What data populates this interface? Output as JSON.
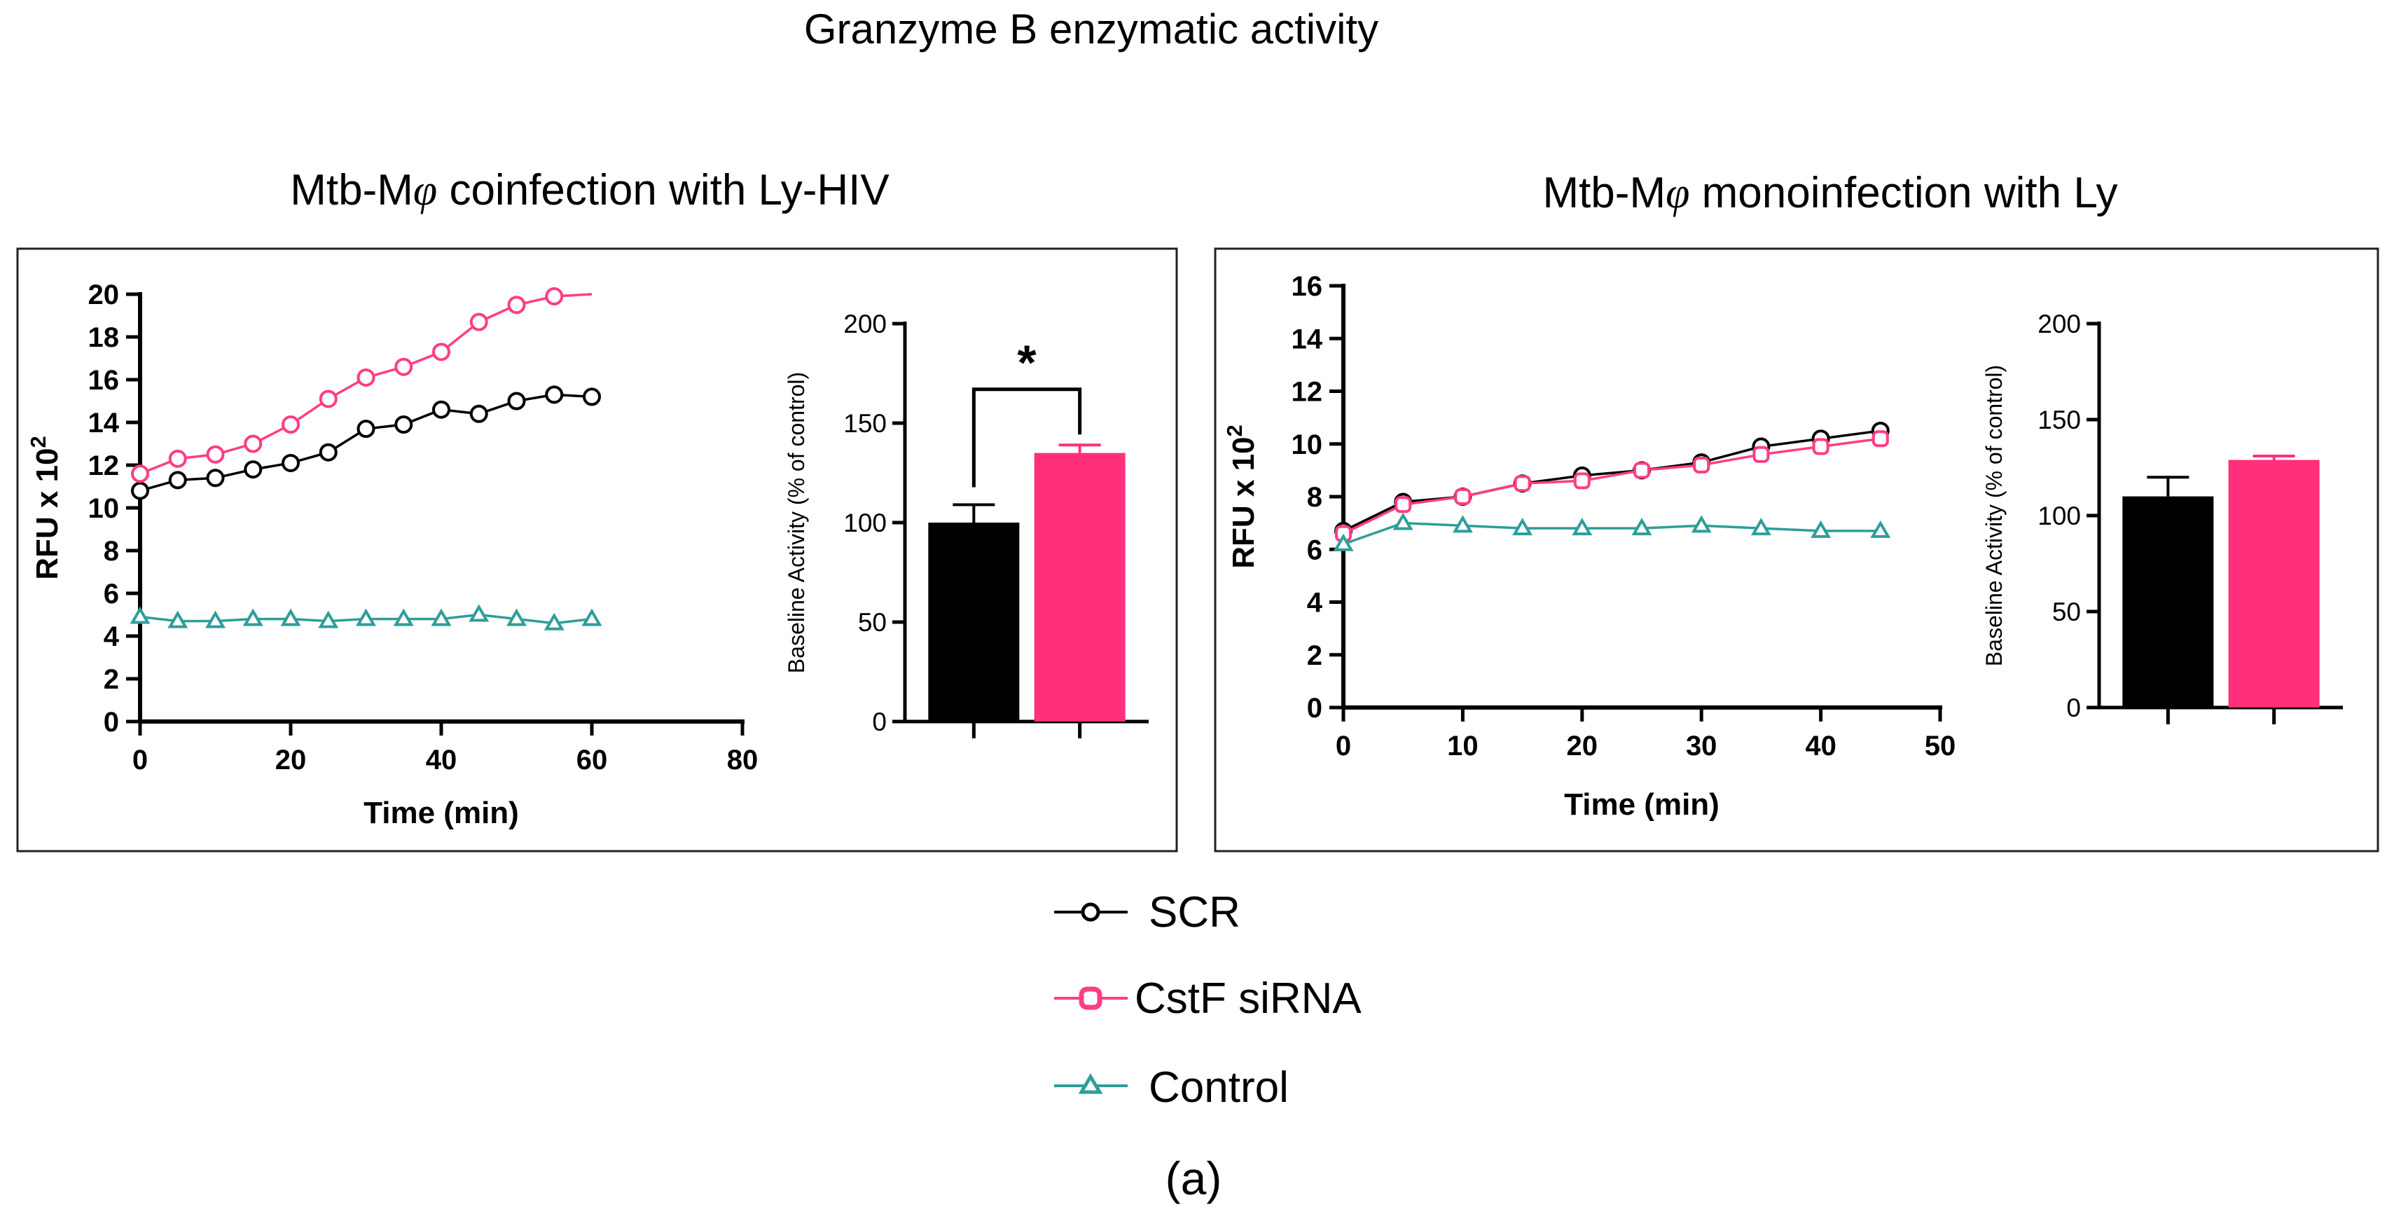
{
  "figure": {
    "title": "Granzyme B enzymatic activity",
    "caption": "(a)"
  },
  "panels": [
    {
      "title_pre": "Mtb-M",
      "title_phi": "φ",
      "title_post": " coinfection with Ly-HIV"
    },
    {
      "title_pre": "Mtb-M",
      "title_phi": "φ",
      "title_post": " monoinfection with Ly"
    }
  ],
  "legend": [
    {
      "label": "SCR",
      "color": "#000000",
      "marker": "circle"
    },
    {
      "label": "CstF siRNA",
      "color": "#ff3d84",
      "marker": "square"
    },
    {
      "label": "Control",
      "color": "#2e9e9a",
      "marker": "triangle"
    }
  ],
  "chart_data": [
    {
      "type": "line",
      "xlabel": "Time (min)",
      "ylabel": "RFU x 10",
      "ylabel_sup": "2",
      "xlim": [
        0,
        80
      ],
      "ylim": [
        0,
        20
      ],
      "xticks": [
        0,
        20,
        40,
        60,
        80
      ],
      "yticks": [
        0,
        2,
        4,
        6,
        8,
        10,
        12,
        14,
        16,
        18,
        20
      ],
      "series": [
        {
          "name": "SCR",
          "color": "#000000",
          "marker": "circle",
          "x": [
            0,
            5,
            10,
            15,
            20,
            25,
            30,
            35,
            40,
            45,
            50,
            55,
            60
          ],
          "y": [
            10.8,
            11.3,
            11.4,
            11.8,
            12.1,
            12.6,
            13.7,
            13.9,
            14.6,
            14.4,
            15.0,
            15.3,
            15.2
          ]
        },
        {
          "name": "CstF siRNA",
          "color": "#ff3d84",
          "marker": "circle",
          "x": [
            0,
            5,
            10,
            15,
            20,
            25,
            30,
            35,
            40,
            45,
            50,
            55,
            60
          ],
          "y": [
            11.6,
            12.3,
            12.5,
            13.0,
            13.9,
            15.1,
            16.1,
            16.6,
            17.3,
            18.7,
            19.5,
            19.9,
            20.0
          ],
          "marker_x": [
            0,
            5,
            10,
            15,
            20,
            25,
            30,
            35,
            40,
            45,
            50,
            55
          ]
        },
        {
          "name": "Control",
          "color": "#2e9e9a",
          "marker": "triangle",
          "x": [
            0,
            5,
            10,
            15,
            20,
            25,
            30,
            35,
            40,
            45,
            50,
            55,
            60
          ],
          "y": [
            4.9,
            4.7,
            4.7,
            4.8,
            4.8,
            4.7,
            4.8,
            4.8,
            4.8,
            5.0,
            4.8,
            4.6,
            4.8
          ]
        }
      ]
    },
    {
      "type": "bar",
      "ylabel": "Baseline Activity (% of control)",
      "ylim": [
        0,
        200
      ],
      "yticks": [
        0,
        50,
        100,
        150,
        200
      ],
      "categories": [
        "SCR",
        "CstF siRNA"
      ],
      "values": [
        100,
        135
      ],
      "errors": [
        9,
        4
      ],
      "colors": [
        "#000000",
        "#ff2f7c"
      ],
      "significance": "*"
    },
    {
      "type": "line",
      "xlabel": "Time (min)",
      "ylabel": "RFU x 10",
      "ylabel_sup": "2",
      "xlim": [
        0,
        50
      ],
      "ylim": [
        0,
        16
      ],
      "xticks": [
        0,
        10,
        20,
        30,
        40,
        50
      ],
      "yticks": [
        0,
        2,
        4,
        6,
        8,
        10,
        12,
        14,
        16
      ],
      "series": [
        {
          "name": "SCR",
          "color": "#000000",
          "marker": "circle",
          "x": [
            0,
            5,
            10,
            15,
            20,
            25,
            30,
            35,
            40,
            45
          ],
          "y": [
            6.7,
            7.8,
            8.0,
            8.5,
            8.8,
            9.0,
            9.3,
            9.9,
            10.2,
            10.5
          ]
        },
        {
          "name": "CstF siRNA",
          "color": "#ff3d84",
          "marker": "square",
          "x": [
            0,
            5,
            10,
            15,
            20,
            25,
            30,
            35,
            40,
            45
          ],
          "y": [
            6.6,
            7.7,
            8.0,
            8.5,
            8.6,
            9.0,
            9.2,
            9.6,
            9.9,
            10.2
          ]
        },
        {
          "name": "Control",
          "color": "#2e9e9a",
          "marker": "triangle",
          "x": [
            0,
            5,
            10,
            15,
            20,
            25,
            30,
            35,
            40,
            45
          ],
          "y": [
            6.2,
            7.0,
            6.9,
            6.8,
            6.8,
            6.8,
            6.9,
            6.8,
            6.7,
            6.7
          ]
        }
      ]
    },
    {
      "type": "bar",
      "ylabel": "Baseline Activity (% of control)",
      "ylim": [
        0,
        200
      ],
      "yticks": [
        0,
        50,
        100,
        150,
        200
      ],
      "categories": [
        "SCR",
        "CstF siRNA"
      ],
      "values": [
        110,
        129
      ],
      "errors": [
        10,
        2
      ],
      "colors": [
        "#000000",
        "#ff2f7c"
      ]
    }
  ]
}
